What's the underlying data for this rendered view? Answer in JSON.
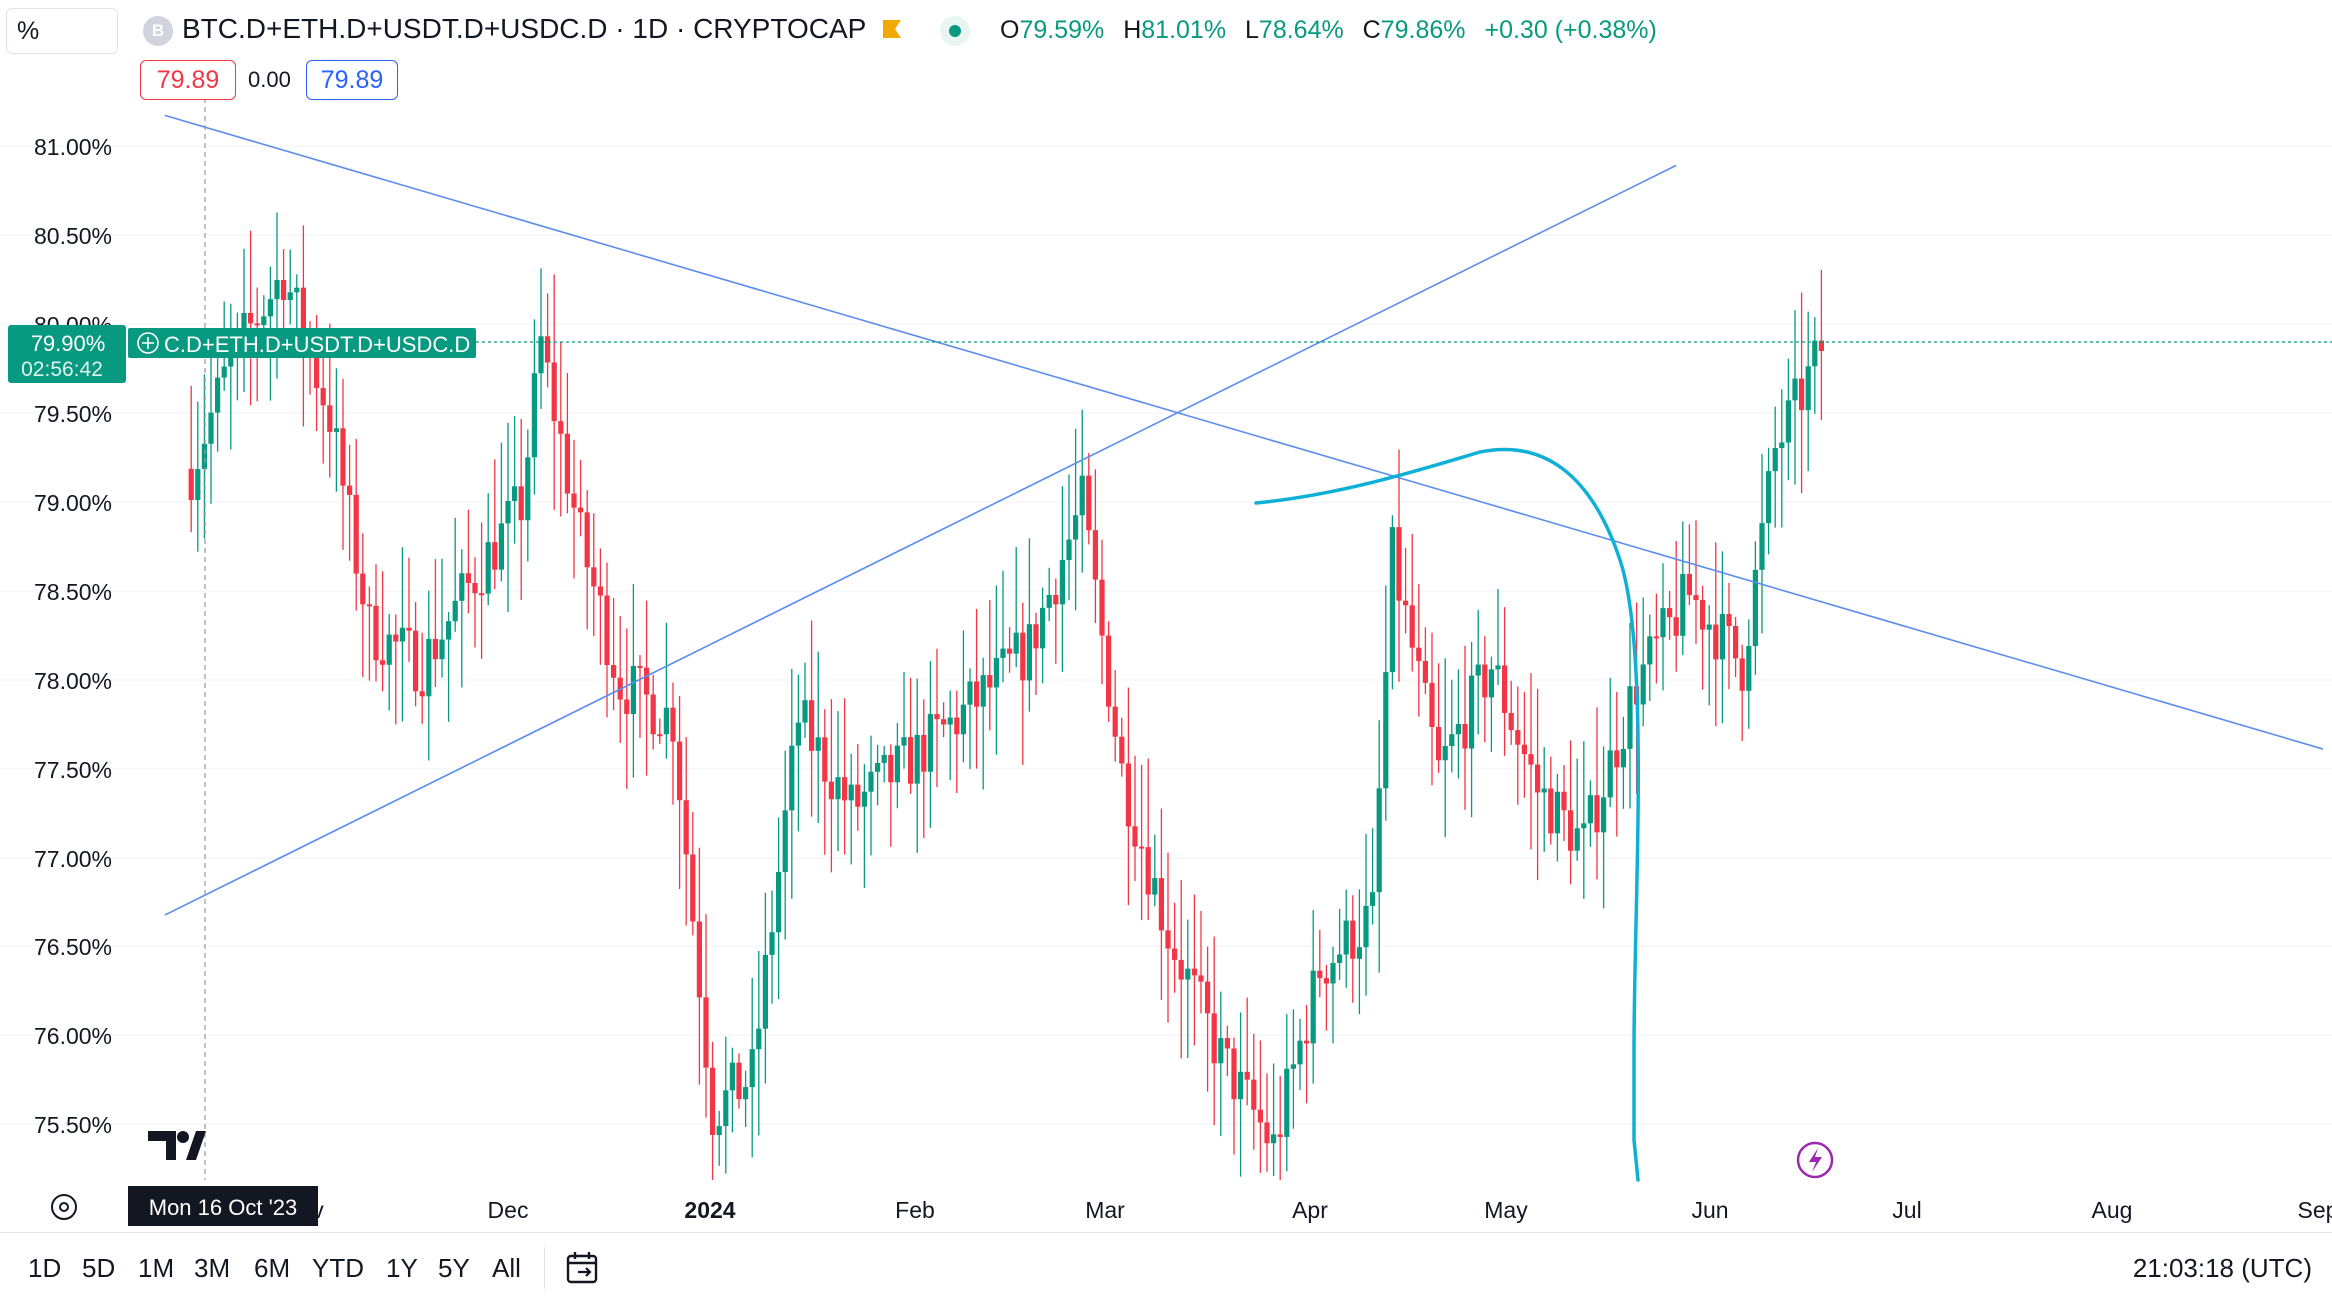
{
  "toolbar": {
    "percent_label": "%",
    "symbol_badge": "B"
  },
  "header": {
    "symbol": "BTC.D+ETH.D+USDT.D+USDC.D · 1D · CRYPTOCAP",
    "ohlc": {
      "o_label": "O",
      "o": "79.59%",
      "h_label": "H",
      "h": "81.01%",
      "l_label": "L",
      "l": "78.64%",
      "c_label": "C",
      "c": "79.86%",
      "change": "+0.30 (+0.38%)"
    },
    "bid": "79.89",
    "spread": "0.00",
    "ask": "79.89"
  },
  "bottom": {
    "ranges": [
      "1D",
      "5D",
      "1M",
      "3M",
      "6M",
      "YTD",
      "1Y",
      "5Y",
      "All"
    ],
    "clock": "21:03:18 (UTC)"
  },
  "colors": {
    "up": "#089981",
    "down": "#f23645",
    "trend": "#5b8def",
    "curve": "#0fb0d6"
  },
  "chart_data": {
    "type": "candlestick",
    "y_axis_labels": [
      "81.00%",
      "80.50%",
      "80.00%",
      "79.50%",
      "79.00%",
      "78.50%",
      "78.00%",
      "77.50%",
      "77.00%",
      "76.50%",
      "76.00%",
      "75.50%"
    ],
    "x_axis_labels": [
      "v",
      "Dec",
      "2024",
      "Feb",
      "Mar",
      "Apr",
      "May",
      "Jun",
      "Jul",
      "Aug",
      "Sep"
    ],
    "crosshair_date": "Mon 16 Oct '23",
    "last_price_label": "79.90%",
    "countdown": "02:56:42",
    "series_tag": "C.D+ETH.D+USDT.D+USDC.D",
    "ylim": [
      75.15,
      81.4
    ],
    "anchors": [
      [
        "2023-10-14",
        79.2
      ],
      [
        "2023-10-20",
        79.8
      ],
      [
        "2023-10-28",
        80.3
      ],
      [
        "2023-11-04",
        79.5
      ],
      [
        "2023-11-10",
        78.3
      ],
      [
        "2023-11-18",
        78.1
      ],
      [
        "2023-11-26",
        78.6
      ],
      [
        "2023-12-03",
        79.0
      ],
      [
        "2023-12-06",
        79.9
      ],
      [
        "2023-12-12",
        78.8
      ],
      [
        "2023-12-18",
        78.0
      ],
      [
        "2023-12-26",
        77.8
      ],
      [
        "2024-01-01",
        75.6
      ],
      [
        "2024-01-07",
        75.8
      ],
      [
        "2024-01-14",
        77.8
      ],
      [
        "2024-01-22",
        77.3
      ],
      [
        "2024-02-01",
        77.6
      ],
      [
        "2024-02-10",
        77.9
      ],
      [
        "2024-02-18",
        78.2
      ],
      [
        "2024-02-26",
        79.0
      ],
      [
        "2024-03-03",
        77.5
      ],
      [
        "2024-03-10",
        76.6
      ],
      [
        "2024-03-18",
        75.9
      ],
      [
        "2024-03-26",
        75.4
      ],
      [
        "2024-04-02",
        76.4
      ],
      [
        "2024-04-10",
        76.7
      ],
      [
        "2024-04-13",
        78.7
      ],
      [
        "2024-04-20",
        77.5
      ],
      [
        "2024-04-28",
        78.1
      ],
      [
        "2024-05-05",
        77.4
      ],
      [
        "2024-05-12",
        77.1
      ],
      [
        "2024-05-20",
        78.0
      ],
      [
        "2024-05-28",
        78.5
      ],
      [
        "2024-06-05",
        78.1
      ],
      [
        "2024-06-10",
        79.3
      ],
      [
        "2024-06-17",
        79.86
      ]
    ],
    "trendlines": [
      {
        "from": [
          "2023-10-10",
          81.18
        ],
        "to": [
          "2024-09-01",
          77.63
        ]
      },
      {
        "from": [
          "2023-10-10",
          76.7
        ],
        "to": [
          "2024-05-26",
          80.9
        ]
      }
    ]
  }
}
